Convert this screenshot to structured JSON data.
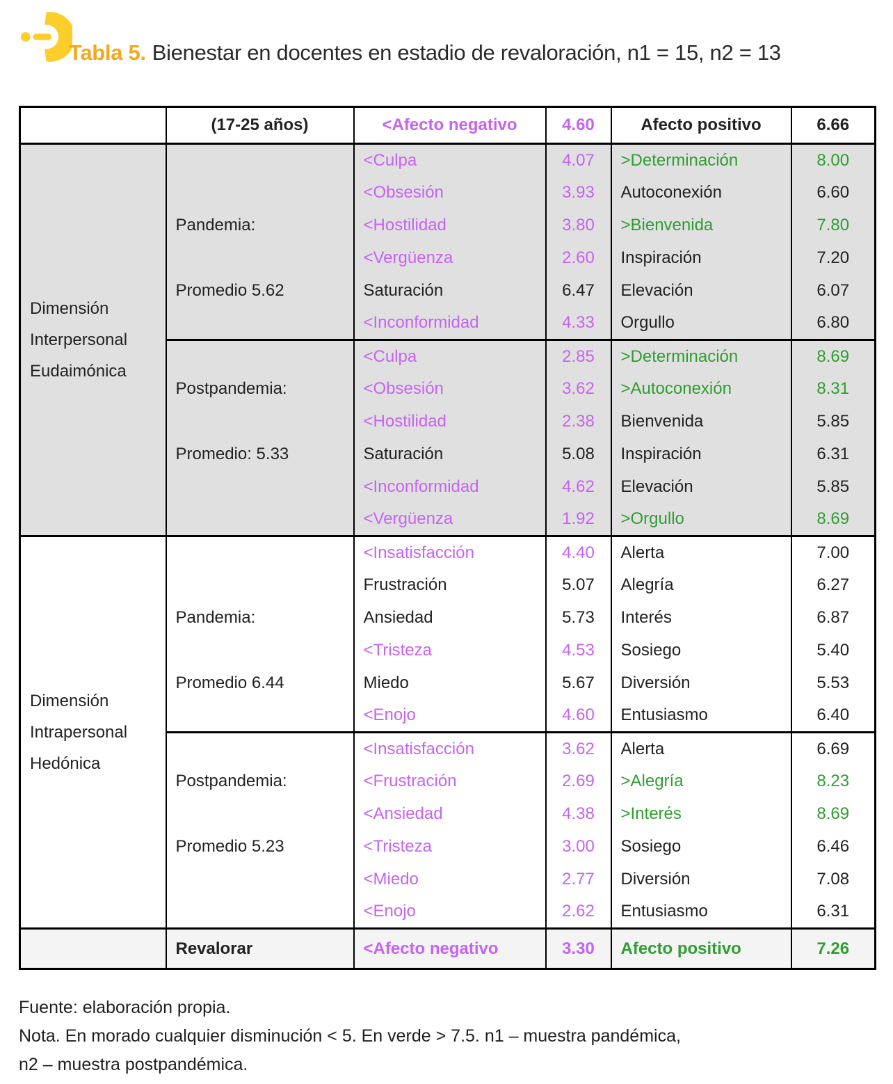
{
  "page": {
    "title_label": "Tabla 5.",
    "title_text": "Bienestar en docentes en estadio de revaloración, n1 = 15, n2 = 13"
  },
  "colors": {
    "negative_purple": "#c763f1",
    "positive_green": "#2f9e30",
    "title_orange": "#f5a81c",
    "logo_yellow": "#fbce2b",
    "section_gray": "#e0e0e0",
    "final_gray": "#f4f4f5"
  },
  "icons": {
    "logo": "journal-logo-icon"
  },
  "table": {
    "header": {
      "corner": "",
      "age_range": "(17-25 años)",
      "neg_label": "<Afecto negativo",
      "neg_value": "4.60",
      "pos_label": "Afecto positivo",
      "pos_value": "6.66"
    },
    "sections": [
      {
        "name": "dimension-interpersonal-eudaimonica",
        "background": "gray",
        "dimension_lines": [
          "Dimensión",
          "Interpersonal",
          "Eudaimónica"
        ],
        "blocks": [
          {
            "rows": [
              {
                "period": "",
                "neg": "<Culpa",
                "neg_value": "4.07",
                "pos": ">Determinación",
                "pos_value": "8.00"
              },
              {
                "period": "",
                "neg": "<Obsesión",
                "neg_value": "3.93",
                "pos": "Autoconexión",
                "pos_value": "6.60"
              },
              {
                "period": "Pandemia:",
                "neg": "<Hostilidad",
                "neg_value": "3.80",
                "pos": ">Bienvenida",
                "pos_value": "7.80"
              },
              {
                "period": "",
                "neg": "<Vergüenza",
                "neg_value": "2.60",
                "pos": "Inspiración",
                "pos_value": "7.20"
              },
              {
                "period": "Promedio 5.62",
                "neg": "Saturación",
                "neg_value": "6.47",
                "pos": "Elevación",
                "pos_value": "6.07"
              },
              {
                "period": "",
                "neg": "<Inconformidad",
                "neg_value": "4.33",
                "pos": "Orgullo",
                "pos_value": "6.80"
              }
            ]
          },
          {
            "rows": [
              {
                "period": "",
                "neg": "<Culpa",
                "neg_value": "2.85",
                "pos": ">Determinación",
                "pos_value": "8.69"
              },
              {
                "period": "Postpandemia:",
                "neg": "<Obsesión",
                "neg_value": "3.62",
                "pos": ">Autoconexión",
                "pos_value": "8.31"
              },
              {
                "period": "",
                "neg": "<Hostilidad",
                "neg_value": "2.38",
                "pos": "Bienvenida",
                "pos_value": "5.85"
              },
              {
                "period": "Promedio: 5.33",
                "neg": "Saturación",
                "neg_value": "5.08",
                "pos": "Inspiración",
                "pos_value": "6.31"
              },
              {
                "period": "",
                "neg": "<Inconformidad",
                "neg_value": "4.62",
                "pos": "Elevación",
                "pos_value": "5.85"
              },
              {
                "period": "",
                "neg": "<Vergüenza",
                "neg_value": "1.92",
                "pos": ">Orgullo",
                "pos_value": "8.69"
              }
            ]
          }
        ]
      },
      {
        "name": "dimension-intrapersonal-hedonica",
        "background": "white",
        "dimension_lines": [
          "Dimensión",
          "Intrapersonal",
          "Hedónica"
        ],
        "blocks": [
          {
            "rows": [
              {
                "period": "",
                "neg": "<Insatisfacción",
                "neg_value": "4.40",
                "pos": "Alerta",
                "pos_value": "7.00"
              },
              {
                "period": "",
                "neg": "Frustración",
                "neg_value": "5.07",
                "pos": "Alegría",
                "pos_value": "6.27"
              },
              {
                "period": "Pandemia:",
                "neg": "Ansiedad",
                "neg_value": "5.73",
                "pos": "Interés",
                "pos_value": "6.87"
              },
              {
                "period": "",
                "neg": "<Tristeza",
                "neg_value": "4.53",
                "pos": "Sosiego",
                "pos_value": "5.40"
              },
              {
                "period": "Promedio 6.44",
                "neg": "Miedo",
                "neg_value": "5.67",
                "pos": "Diversión",
                "pos_value": "5.53"
              },
              {
                "period": "",
                "neg": "<Enojo",
                "neg_value": "4.60",
                "pos": "Entusiasmo",
                "pos_value": "6.40"
              }
            ]
          },
          {
            "rows": [
              {
                "period": "",
                "neg": "<Insatisfacción",
                "neg_value": "3.62",
                "pos": "Alerta",
                "pos_value": "6.69"
              },
              {
                "period": "Postpandemia:",
                "neg": "<Frustración",
                "neg_value": "2.69",
                "pos": ">Alegría",
                "pos_value": "8.23"
              },
              {
                "period": "",
                "neg": "<Ansiedad",
                "neg_value": "4.38",
                "pos": ">Interés",
                "pos_value": "8.69"
              },
              {
                "period": "Promedio 5.23",
                "neg": "<Tristeza",
                "neg_value": "3.00",
                "pos": "Sosiego",
                "pos_value": "6.46"
              },
              {
                "period": "",
                "neg": "<Miedo",
                "neg_value": "2.77",
                "pos": "Diversión",
                "pos_value": "7.08"
              },
              {
                "period": "",
                "neg": "<Enojo",
                "neg_value": "2.62",
                "pos": "Entusiasmo",
                "pos_value": "6.31"
              }
            ]
          }
        ]
      }
    ],
    "final_row": {
      "corner": "",
      "period": "Revalorar",
      "neg": "<Afecto negativo",
      "neg_value": "3.30",
      "neg_color": "purple",
      "pos": "Afecto positivo",
      "pos_value": "7.26",
      "pos_color": "green"
    }
  },
  "footer": {
    "fuente": "Fuente: elaboración propia.",
    "nota_line1": "Nota. En morado cualquier disminución < 5. En verde > 7.5. n1 – muestra pandémica,",
    "nota_line2": "n2 – muestra postpandémica."
  }
}
